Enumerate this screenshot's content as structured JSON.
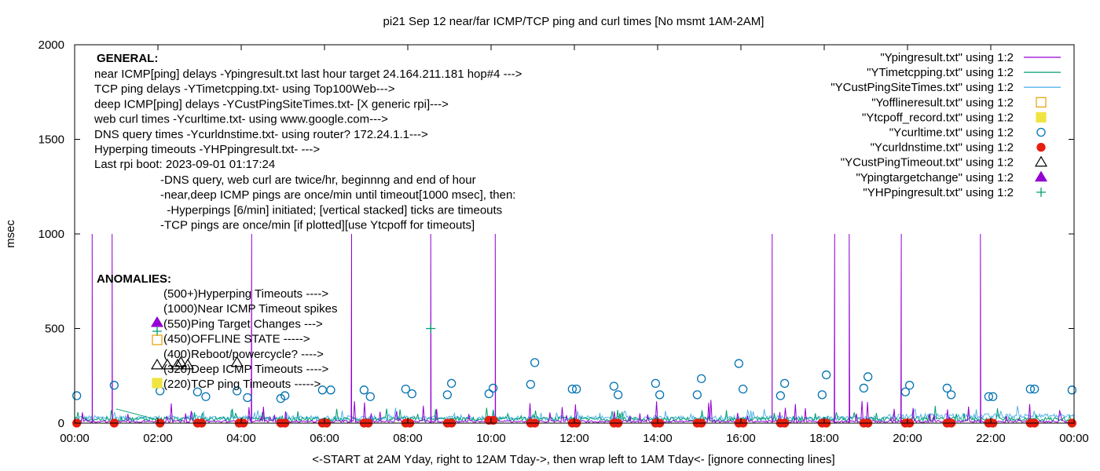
{
  "chart_data": {
    "type": "line",
    "title": "pi21 Sep 12  near/far ICMP/TCP ping and curl times [No msmt 1AM-2AM]",
    "xlabel": "<-START at 2AM Yday, right to 12AM Tday->, then wrap left to 1AM Tday<- [ignore connecting lines]",
    "ylabel": "msec",
    "xlim": [
      0,
      24
    ],
    "ylim": [
      0,
      2000
    ],
    "x_ticks": [
      {
        "v": 0,
        "label": "00:00"
      },
      {
        "v": 2,
        "label": "02:00"
      },
      {
        "v": 4,
        "label": "04:00"
      },
      {
        "v": 6,
        "label": "06:00"
      },
      {
        "v": 8,
        "label": "08:00"
      },
      {
        "v": 10,
        "label": "10:00"
      },
      {
        "v": 12,
        "label": "12:00"
      },
      {
        "v": 14,
        "label": "14:00"
      },
      {
        "v": 16,
        "label": "16:00"
      },
      {
        "v": 18,
        "label": "18:00"
      },
      {
        "v": 20,
        "label": "20:00"
      },
      {
        "v": 22,
        "label": "22:00"
      },
      {
        "v": 24,
        "label": "00:00"
      }
    ],
    "y_ticks": [
      {
        "v": 0,
        "label": "0"
      },
      {
        "v": 500,
        "label": "500"
      },
      {
        "v": 1000,
        "label": "1000"
      },
      {
        "v": 1500,
        "label": "1500"
      },
      {
        "v": 2000,
        "label": "2000"
      }
    ],
    "grid": false,
    "legend_position": "top-right",
    "series": [
      {
        "name": "\"Ypingresult.txt\" using 1:2",
        "style": "line",
        "color": "#9400d3",
        "spikes": [
          [
            0.42,
            1000
          ],
          [
            0.9,
            1000
          ],
          [
            4.25,
            1000
          ],
          [
            6.65,
            1000
          ],
          [
            8.55,
            1000
          ],
          [
            10.1,
            1000
          ],
          [
            16.75,
            1000
          ],
          [
            18.25,
            1000
          ],
          [
            18.6,
            1000
          ],
          [
            19.85,
            1000
          ],
          [
            21.75,
            1000
          ]
        ]
      },
      {
        "name": "\"YTimetcpping.txt\" using 1:2",
        "style": "line",
        "color": "#009e73"
      },
      {
        "name": "\"YCustPingSiteTimes.txt\" using 1:2",
        "style": "line",
        "color": "#56b4e9"
      },
      {
        "name": "\"Yofflineresult.txt\" using 1:2",
        "style": "open-square",
        "color": "#e69f00",
        "points": []
      },
      {
        "name": "\"Ytcpoff_record.txt\" using 1:2",
        "style": "filled-square",
        "color": "#f0e442",
        "points": []
      },
      {
        "name": "\"Ycurltime.txt\" using 1:2",
        "style": "open-circle",
        "color": "#0072b2",
        "points": [
          [
            0.05,
            145
          ],
          [
            0.95,
            200
          ],
          [
            2.05,
            170
          ],
          [
            2.95,
            165
          ],
          [
            3.15,
            140
          ],
          [
            3.9,
            170
          ],
          [
            4.15,
            135
          ],
          [
            4.95,
            130
          ],
          [
            5.05,
            145
          ],
          [
            5.95,
            175
          ],
          [
            6.15,
            175
          ],
          [
            6.95,
            175
          ],
          [
            7.1,
            140
          ],
          [
            7.95,
            180
          ],
          [
            8.1,
            155
          ],
          [
            8.95,
            150
          ],
          [
            9.05,
            210
          ],
          [
            9.95,
            155
          ],
          [
            10.05,
            185
          ],
          [
            10.95,
            205
          ],
          [
            11.05,
            320
          ],
          [
            11.95,
            180
          ],
          [
            12.05,
            180
          ],
          [
            12.95,
            195
          ],
          [
            13.05,
            150
          ],
          [
            13.95,
            210
          ],
          [
            14.05,
            150
          ],
          [
            14.95,
            150
          ],
          [
            15.05,
            235
          ],
          [
            15.95,
            315
          ],
          [
            16.05,
            180
          ],
          [
            16.95,
            145
          ],
          [
            17.05,
            210
          ],
          [
            17.95,
            150
          ],
          [
            18.05,
            255
          ],
          [
            18.95,
            185
          ],
          [
            19.05,
            245
          ],
          [
            19.95,
            165
          ],
          [
            20.05,
            200
          ],
          [
            20.95,
            185
          ],
          [
            21.05,
            150
          ],
          [
            21.95,
            140
          ],
          [
            22.05,
            140
          ],
          [
            22.95,
            180
          ],
          [
            23.05,
            180
          ],
          [
            23.95,
            175
          ]
        ]
      },
      {
        "name": "\"Ycurldnstime.txt\" using 1:2",
        "style": "filled-circle",
        "color": "#e51e10",
        "points": [
          [
            0.05,
            0
          ],
          [
            0.95,
            0
          ],
          [
            2.05,
            0
          ],
          [
            2.95,
            0
          ],
          [
            3.05,
            0
          ],
          [
            3.95,
            0
          ],
          [
            4.05,
            0
          ],
          [
            4.95,
            0
          ],
          [
            5.05,
            0
          ],
          [
            5.95,
            0
          ],
          [
            6.05,
            0
          ],
          [
            6.95,
            0
          ],
          [
            7.05,
            0
          ],
          [
            7.95,
            0
          ],
          [
            8.05,
            0
          ],
          [
            8.95,
            0
          ],
          [
            9.05,
            0
          ],
          [
            9.95,
            15
          ],
          [
            10.05,
            15
          ],
          [
            10.95,
            0
          ],
          [
            11.05,
            0
          ],
          [
            11.95,
            0
          ],
          [
            12.05,
            0
          ],
          [
            12.95,
            0
          ],
          [
            13.05,
            0
          ],
          [
            13.95,
            0
          ],
          [
            14.05,
            0
          ],
          [
            14.95,
            0
          ],
          [
            15.05,
            0
          ],
          [
            15.95,
            0
          ],
          [
            16.05,
            0
          ],
          [
            16.95,
            0
          ],
          [
            17.05,
            0
          ],
          [
            17.95,
            0
          ],
          [
            18.05,
            0
          ],
          [
            18.95,
            0
          ],
          [
            19.05,
            0
          ],
          [
            19.95,
            0
          ],
          [
            20.05,
            0
          ],
          [
            20.95,
            0
          ],
          [
            21.05,
            0
          ],
          [
            21.95,
            0
          ],
          [
            22.05,
            0
          ],
          [
            22.95,
            0
          ],
          [
            23.05,
            0
          ],
          [
            23.95,
            0
          ]
        ]
      },
      {
        "name": "\"YCustPingTimeout.txt\" using 1:2",
        "style": "open-triangle",
        "color": "#000000",
        "points": [
          [
            2.55,
            320
          ],
          [
            3.9,
            320
          ]
        ]
      },
      {
        "name": "\"Ypingtargetchange\" using 1:2",
        "style": "filled-triangle",
        "color": "#9400d3",
        "points": []
      },
      {
        "name": "\"YHPpingresult.txt\" using 1:2",
        "style": "plus",
        "color": "#009e73",
        "points": [
          [
            8.55,
            500
          ]
        ]
      }
    ],
    "annotations": {
      "general_header": "GENERAL:",
      "general_lines": [
        "near ICMP[ping] delays -Ypingresult.txt last hour target 24.164.211.181 hop#4 --->",
        "TCP ping delays -YTimetcpping.txt- using Top100Web--->",
        "deep ICMP[ping] delays -YCustPingSiteTimes.txt- [X generic rpi]--->",
        "web curl times -Ycurltime.txt- using www.google.com--->",
        "DNS query times -Ycurldnstime.txt- using router? 172.24.1.1--->",
        "Hyperping timeouts -YHPpingresult.txt- --->",
        "Last rpi boot: 2023-09-01 01:17:24"
      ],
      "general_notes": [
        "-DNS query, web curl are twice/hr, beginnng and end of hour",
        "-near,deep ICMP pings are once/min until timeout[1000 msec], then:",
        "  -Hyperpings [6/min] initiated; [vertical stacked] ticks are timeouts",
        "-TCP pings are once/min [if plotted][use Ytcpoff for timeouts]"
      ],
      "anomalies_header": "ANOMALIES:",
      "anomaly_lines": [
        "(500+)Hyperping Timeouts ---->",
        "(1000)Near ICMP Timeout spikes",
        "(550)Ping Target Changes --->",
        "(450)OFFLINE STATE ----->",
        "(400)Reboot/powercycle? ---->",
        "(320)Deep ICMP Timeouts ---->",
        "(220)TCP ping Timeouts ----->"
      ]
    }
  }
}
